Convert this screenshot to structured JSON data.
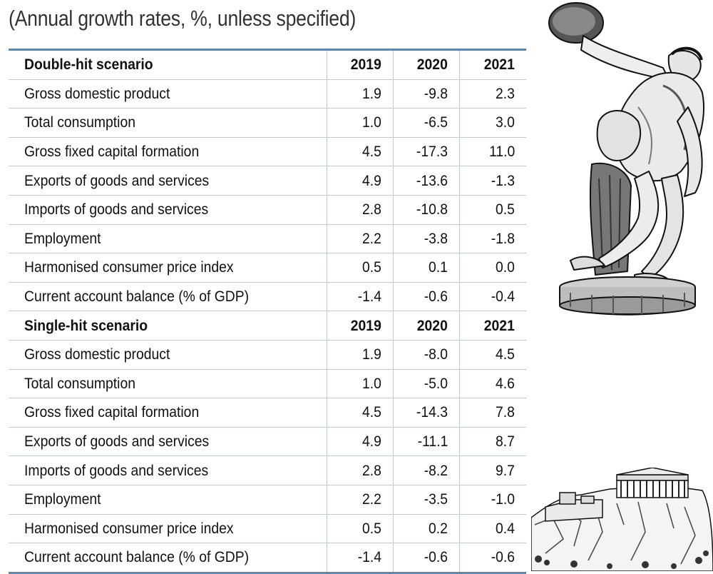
{
  "subtitle": "(Annual growth rates, %, unless specified)",
  "table": {
    "sections": [
      {
        "name": "Double-hit scenario",
        "years": [
          "2019",
          "2020",
          "2021"
        ],
        "rows": [
          {
            "label": "Gross domestic product",
            "values": [
              "1.9",
              "-9.8",
              "2.3"
            ]
          },
          {
            "label": "Total consumption",
            "values": [
              "1.0",
              "-6.5",
              "3.0"
            ]
          },
          {
            "label": "Gross fixed capital formation",
            "values": [
              "4.5",
              "-17.3",
              "11.0"
            ]
          },
          {
            "label": "Exports of goods and services",
            "values": [
              "4.9",
              "-13.6",
              "-1.3"
            ]
          },
          {
            "label": "Imports of goods and services",
            "values": [
              "2.8",
              "-10.8",
              "0.5"
            ]
          },
          {
            "label": "Employment",
            "values": [
              "2.2",
              "-3.8",
              "-1.8"
            ]
          },
          {
            "label": "Harmonised consumer price index",
            "values": [
              "0.5",
              "0.1",
              "0.0"
            ]
          },
          {
            "label": "Current account balance (% of GDP)",
            "values": [
              "-1.4",
              "-0.6",
              "-0.4"
            ]
          }
        ]
      },
      {
        "name": "Single-hit scenario",
        "years": [
          "2019",
          "2020",
          "2021"
        ],
        "rows": [
          {
            "label": "Gross domestic product",
            "values": [
              "1.9",
              "-8.0",
              "4.5"
            ]
          },
          {
            "label": "Total consumption",
            "values": [
              "1.0",
              "-5.0",
              "4.6"
            ]
          },
          {
            "label": "Gross fixed capital formation",
            "values": [
              "4.5",
              "-14.3",
              "7.8"
            ]
          },
          {
            "label": "Exports of goods and services",
            "values": [
              "4.9",
              "-11.1",
              "8.7"
            ]
          },
          {
            "label": "Imports of goods and services",
            "values": [
              "2.8",
              "-8.2",
              "9.7"
            ]
          },
          {
            "label": "Employment",
            "values": [
              "2.2",
              "-3.5",
              "-1.0"
            ]
          },
          {
            "label": "Harmonised consumer price index",
            "values": [
              "0.5",
              "0.2",
              "0.4"
            ]
          },
          {
            "label": "Current account balance (% of GDP)",
            "values": [
              "-1.4",
              "-0.6",
              "-0.6"
            ]
          }
        ]
      }
    ]
  },
  "colors": {
    "rule": "#5c86b4",
    "grid": "#c3c9d0"
  },
  "images": [
    {
      "name": "discobolus-statue-illustration"
    },
    {
      "name": "acropolis-illustration"
    }
  ]
}
